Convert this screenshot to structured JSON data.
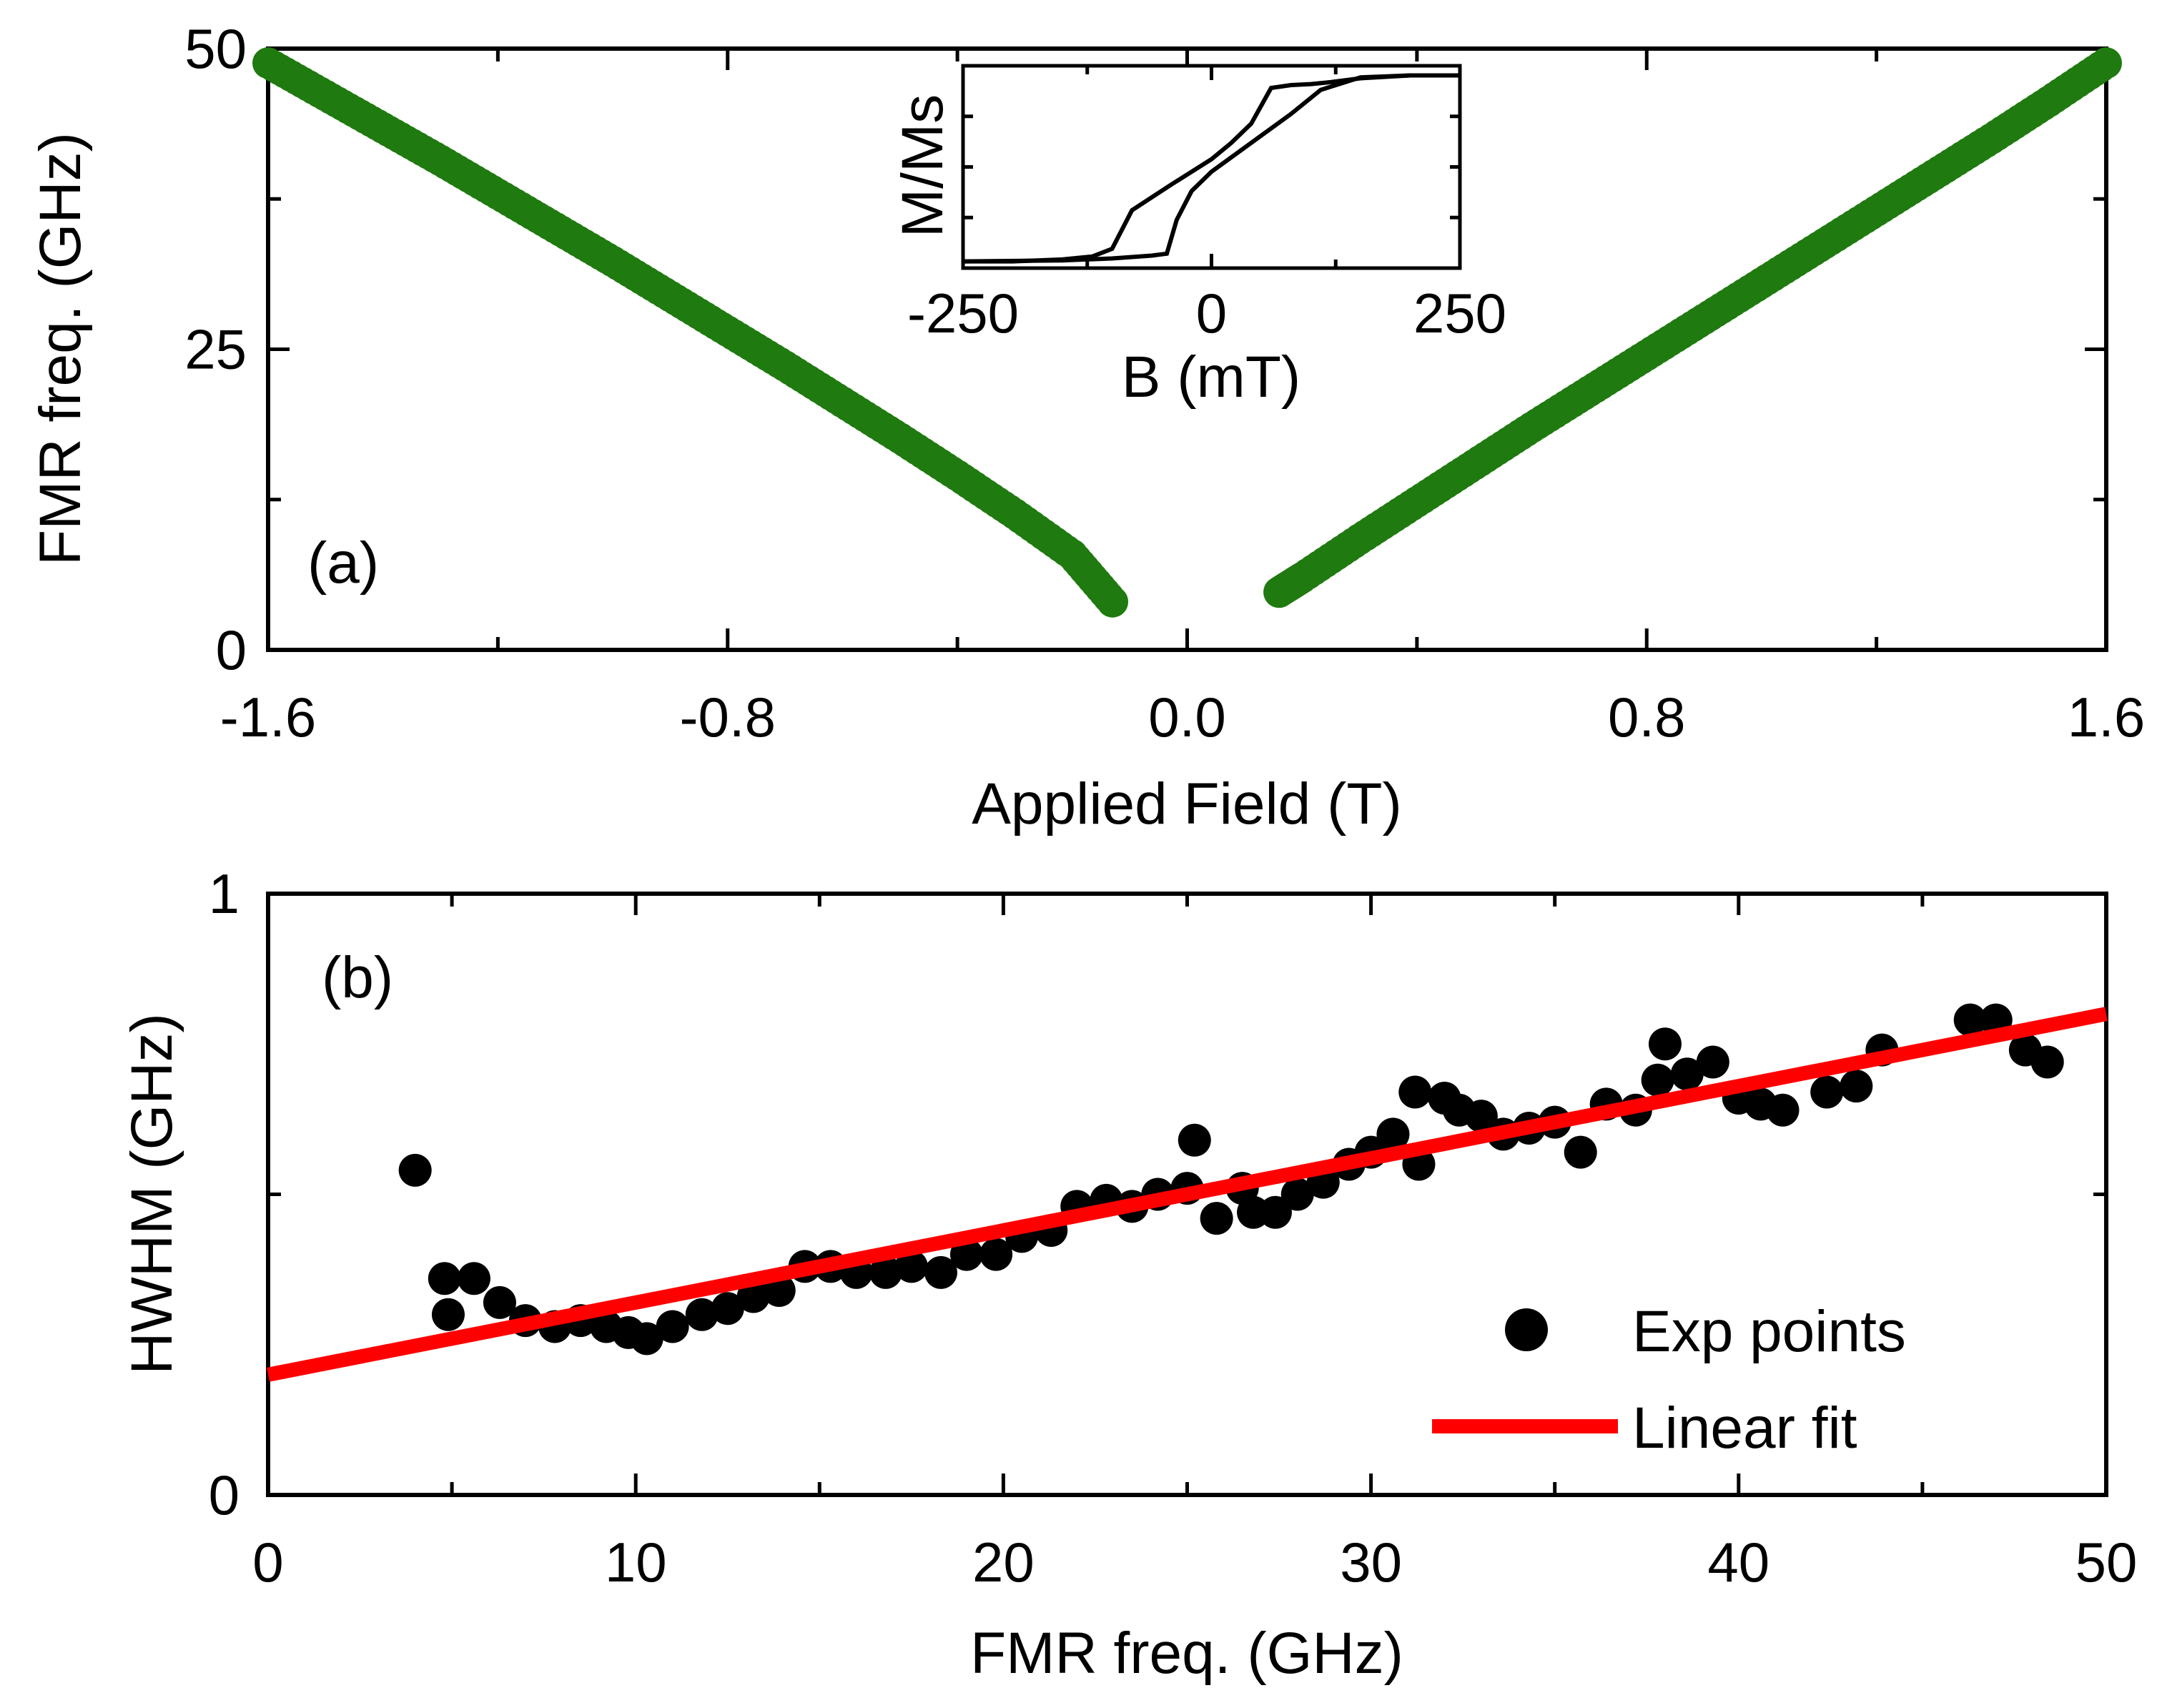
{
  "chart_data": [
    {
      "id": "a",
      "type": "scatter",
      "panel_label": "(a)",
      "xlabel": "Applied Field (T)",
      "ylabel": "FMR freq. (GHz)",
      "xlim": [
        -1.6,
        1.6
      ],
      "ylim": [
        0,
        50
      ],
      "xticks": [
        "-1.6",
        "-0.8",
        "0.0",
        "0.8",
        "1.6"
      ],
      "xtick_values": [
        -1.6,
        -0.8,
        0.0,
        0.8,
        1.6
      ],
      "yticks": [
        "0",
        "25",
        "50"
      ],
      "ytick_values": [
        0,
        25,
        50
      ],
      "marker_color": "#1f7a0f",
      "series": [
        {
          "points": [
            [
              -1.6,
              48.8
            ],
            [
              -1.5,
              46.1
            ],
            [
              -1.4,
              43.4
            ],
            [
              -1.3,
              40.7
            ],
            [
              -1.2,
              37.9
            ],
            [
              -1.1,
              35.1
            ],
            [
              -1.0,
              32.3
            ],
            [
              -0.9,
              29.4
            ],
            [
              -0.8,
              26.5
            ],
            [
              -0.7,
              23.6
            ],
            [
              -0.6,
              20.6
            ],
            [
              -0.5,
              17.6
            ],
            [
              -0.4,
              14.5
            ],
            [
              -0.3,
              11.3
            ],
            [
              -0.2,
              7.9
            ],
            [
              -0.13,
              4.0
            ]
          ]
        },
        {
          "points": [
            [
              0.16,
              4.8
            ],
            [
              0.2,
              6.0
            ],
            [
              0.3,
              9.2
            ],
            [
              0.4,
              12.3
            ],
            [
              0.5,
              15.4
            ],
            [
              0.6,
              18.5
            ],
            [
              0.7,
              21.5
            ],
            [
              0.8,
              24.5
            ],
            [
              0.9,
              27.5
            ],
            [
              1.0,
              30.5
            ],
            [
              1.1,
              33.5
            ],
            [
              1.2,
              36.5
            ],
            [
              1.3,
              39.5
            ],
            [
              1.4,
              42.5
            ],
            [
              1.5,
              45.6
            ],
            [
              1.6,
              48.8
            ]
          ]
        }
      ]
    },
    {
      "id": "a-inset",
      "type": "line",
      "xlabel": "B (mT)",
      "ylabel": "M/Ms",
      "xlim": [
        -250,
        250
      ],
      "ylim": [
        -1.05,
        1.05
      ],
      "xticks": [
        "-250",
        "0",
        "250"
      ],
      "xtick_values": [
        -250,
        0,
        250
      ],
      "line_color": "#000000",
      "series": [
        {
          "x": [
            -250,
            -200,
            -150,
            -120,
            -100,
            -80,
            -40,
            0,
            20,
            40,
            60,
            80,
            100,
            120,
            150,
            200,
            250
          ],
          "y": [
            -0.98,
            -0.98,
            -0.96,
            -0.93,
            -0.85,
            -0.45,
            -0.18,
            0.08,
            0.25,
            0.45,
            0.82,
            0.85,
            0.86,
            0.88,
            0.92,
            0.95,
            0.95
          ]
        },
        {
          "x": [
            -250,
            -150,
            -100,
            -60,
            -45,
            -35,
            -20,
            0,
            40,
            80,
            110,
            150,
            200,
            250
          ],
          "y": [
            -0.98,
            -0.97,
            -0.95,
            -0.92,
            -0.9,
            -0.55,
            -0.25,
            -0.05,
            0.25,
            0.55,
            0.8,
            0.93,
            0.95,
            0.95
          ]
        }
      ]
    },
    {
      "id": "b",
      "type": "scatter",
      "panel_label": "(b)",
      "xlabel": "FMR freq. (GHz)",
      "ylabel": "HWHM (GHz)",
      "xlim": [
        0,
        50
      ],
      "ylim": [
        0,
        1
      ],
      "xticks": [
        "0",
        "10",
        "20",
        "30",
        "40",
        "50"
      ],
      "xtick_values": [
        0,
        10,
        20,
        30,
        40,
        50
      ],
      "yticks": [
        "0",
        "1"
      ],
      "ytick_values": [
        0,
        1
      ],
      "legend_position": "bottom-right",
      "legend": [
        "Exp points",
        "Linear fit"
      ],
      "point_color": "#000000",
      "fit_color": "#ff0000",
      "exp_points": [
        [
          4.0,
          0.54
        ],
        [
          4.8,
          0.36
        ],
        [
          4.9,
          0.3
        ],
        [
          5.6,
          0.36
        ],
        [
          6.3,
          0.32
        ],
        [
          7.0,
          0.29
        ],
        [
          7.8,
          0.28
        ],
        [
          8.5,
          0.29
        ],
        [
          9.2,
          0.28
        ],
        [
          9.8,
          0.27
        ],
        [
          10.3,
          0.26
        ],
        [
          11.0,
          0.28
        ],
        [
          11.8,
          0.3
        ],
        [
          12.5,
          0.31
        ],
        [
          13.2,
          0.33
        ],
        [
          13.9,
          0.34
        ],
        [
          14.6,
          0.38
        ],
        [
          15.3,
          0.38
        ],
        [
          16.0,
          0.37
        ],
        [
          16.8,
          0.37
        ],
        [
          17.5,
          0.38
        ],
        [
          18.3,
          0.37
        ],
        [
          19.0,
          0.4
        ],
        [
          19.8,
          0.4
        ],
        [
          20.5,
          0.43
        ],
        [
          21.3,
          0.44
        ],
        [
          22.0,
          0.48
        ],
        [
          22.8,
          0.49
        ],
        [
          23.5,
          0.48
        ],
        [
          24.2,
          0.5
        ],
        [
          25.0,
          0.51
        ],
        [
          25.2,
          0.59
        ],
        [
          25.8,
          0.46
        ],
        [
          26.5,
          0.51
        ],
        [
          26.8,
          0.47
        ],
        [
          27.4,
          0.47
        ],
        [
          28.0,
          0.5
        ],
        [
          28.7,
          0.52
        ],
        [
          29.4,
          0.55
        ],
        [
          30.0,
          0.57
        ],
        [
          30.6,
          0.6
        ],
        [
          31.2,
          0.67
        ],
        [
          31.3,
          0.55
        ],
        [
          32.0,
          0.66
        ],
        [
          32.4,
          0.64
        ],
        [
          33.0,
          0.63
        ],
        [
          33.6,
          0.6
        ],
        [
          34.3,
          0.61
        ],
        [
          35.0,
          0.62
        ],
        [
          35.7,
          0.57
        ],
        [
          36.4,
          0.65
        ],
        [
          37.2,
          0.64
        ],
        [
          37.8,
          0.69
        ],
        [
          38.0,
          0.75
        ],
        [
          38.6,
          0.7
        ],
        [
          39.3,
          0.72
        ],
        [
          40.0,
          0.66
        ],
        [
          40.6,
          0.65
        ],
        [
          41.2,
          0.64
        ],
        [
          42.4,
          0.67
        ],
        [
          43.2,
          0.68
        ],
        [
          43.9,
          0.74
        ],
        [
          46.3,
          0.79
        ],
        [
          47.0,
          0.79
        ],
        [
          47.8,
          0.74
        ],
        [
          48.4,
          0.72
        ]
      ],
      "fit": {
        "x": [
          0,
          50
        ],
        "y": [
          0.2,
          0.8
        ]
      }
    }
  ]
}
